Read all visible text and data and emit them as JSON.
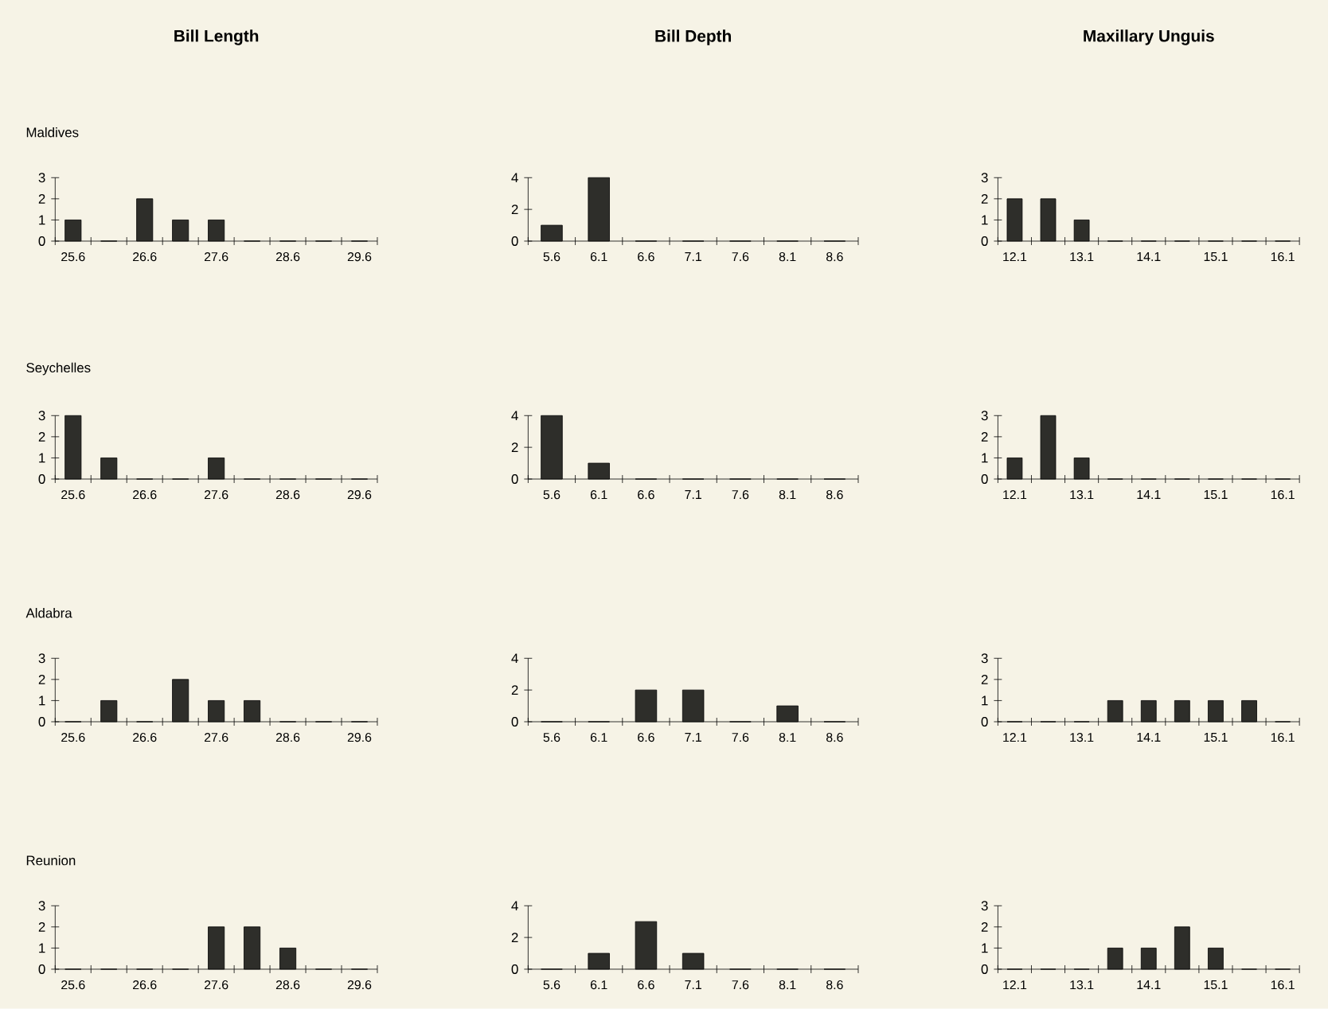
{
  "chart_data": [
    {
      "type": "bar",
      "title": "Bill Length",
      "subtitle": "Maldives",
      "categories": [
        "25.6",
        null,
        "26.6",
        null,
        "27.6",
        null,
        "28.6",
        null,
        "29.6"
      ],
      "values": [
        1,
        0,
        2,
        1,
        1,
        0,
        0,
        0,
        0
      ],
      "color": "#2e2e2a",
      "ylim": [
        0,
        3
      ],
      "yticks": [
        0,
        1,
        2,
        3
      ]
    },
    {
      "type": "bar",
      "title": "Bill Depth",
      "categories": [
        "5.6",
        "6.1",
        "6.6",
        "7.1",
        "7.6",
        "8.1",
        "8.6"
      ],
      "values": [
        1,
        4,
        0,
        0,
        0,
        0,
        0
      ],
      "color": "#2e2e2a",
      "ylim": [
        0,
        4
      ],
      "yticks": [
        0,
        2,
        4
      ]
    },
    {
      "type": "bar",
      "title": "Maxillary Unguis",
      "categories": [
        "12.1",
        null,
        "13.1",
        null,
        "14.1",
        null,
        "15.1",
        null,
        "16.1"
      ],
      "values": [
        2,
        2,
        1,
        0,
        0,
        0,
        0,
        0,
        0
      ],
      "color": "#2e2e2a",
      "ylim": [
        0,
        3
      ],
      "yticks": [
        0,
        1,
        2,
        3
      ]
    },
    {
      "type": "bar",
      "subtitle": "Seychelles",
      "categories": [
        "25.6",
        null,
        "26.6",
        null,
        "27.6",
        null,
        "28.6",
        null,
        "29.6"
      ],
      "values": [
        3,
        1,
        0,
        0,
        1,
        0,
        0,
        0,
        0
      ],
      "color": "#2e2e2a",
      "ylim": [
        0,
        3
      ],
      "yticks": [
        0,
        1,
        2,
        3
      ]
    },
    {
      "type": "bar",
      "categories": [
        "5.6",
        "6.1",
        "6.6",
        "7.1",
        "7.6",
        "8.1",
        "8.6"
      ],
      "values": [
        4,
        1,
        0,
        0,
        0,
        0,
        0
      ],
      "color": "#2e2e2a",
      "ylim": [
        0,
        4
      ],
      "yticks": [
        0,
        2,
        4
      ]
    },
    {
      "type": "bar",
      "categories": [
        "12.1",
        null,
        "13.1",
        null,
        "14.1",
        null,
        "15.1",
        null,
        "16.1"
      ],
      "values": [
        1,
        3,
        1,
        0,
        0,
        0,
        0,
        0,
        0
      ],
      "color": "#2e2e2a",
      "ylim": [
        0,
        3
      ],
      "yticks": [
        0,
        1,
        2,
        3
      ]
    },
    {
      "type": "bar",
      "subtitle": "Aldabra",
      "categories": [
        "25.6",
        null,
        "26.6",
        null,
        "27.6",
        null,
        "28.6",
        null,
        "29.6"
      ],
      "values": [
        0,
        1,
        0,
        2,
        1,
        1,
        0,
        0,
        0
      ],
      "color": "#2e2e2a",
      "ylim": [
        0,
        3
      ],
      "yticks": [
        0,
        1,
        2,
        3
      ]
    },
    {
      "type": "bar",
      "categories": [
        "5.6",
        "6.1",
        "6.6",
        "7.1",
        "7.6",
        "8.1",
        "8.6"
      ],
      "values": [
        0,
        0,
        2,
        2,
        0,
        1,
        0
      ],
      "color": "#2e2e2a",
      "ylim": [
        0,
        4
      ],
      "yticks": [
        0,
        2,
        4
      ]
    },
    {
      "type": "bar",
      "categories": [
        "12.1",
        null,
        "13.1",
        null,
        "14.1",
        null,
        "15.1",
        null,
        "16.1"
      ],
      "values": [
        0,
        0,
        0,
        1,
        1,
        1,
        1,
        1,
        0
      ],
      "color": "#2e2e2a",
      "ylim": [
        0,
        3
      ],
      "yticks": [
        0,
        1,
        2,
        3
      ]
    },
    {
      "type": "bar",
      "subtitle": "Reunion",
      "categories": [
        "25.6",
        null,
        "26.6",
        null,
        "27.6",
        null,
        "28.6",
        null,
        "29.6"
      ],
      "values": [
        0,
        0,
        0,
        0,
        2,
        2,
        1,
        0,
        0
      ],
      "color": "#2e2e2a",
      "ylim": [
        0,
        3
      ],
      "yticks": [
        0,
        1,
        2,
        3
      ]
    },
    {
      "type": "bar",
      "categories": [
        "5.6",
        "6.1",
        "6.6",
        "7.1",
        "7.6",
        "8.1",
        "8.6"
      ],
      "values": [
        0,
        1,
        3,
        1,
        0,
        0,
        0
      ],
      "color": "#2e2e2a",
      "ylim": [
        0,
        4
      ],
      "yticks": [
        0,
        2,
        4
      ]
    },
    {
      "type": "bar",
      "categories": [
        "12.1",
        null,
        "13.1",
        null,
        "14.1",
        null,
        "15.1",
        null,
        "16.1"
      ],
      "values": [
        0,
        0,
        0,
        1,
        1,
        2,
        1,
        0,
        0
      ],
      "color": "#2e2e2a",
      "ylim": [
        0,
        3
      ],
      "yticks": [
        0,
        1,
        2,
        3
      ]
    }
  ]
}
